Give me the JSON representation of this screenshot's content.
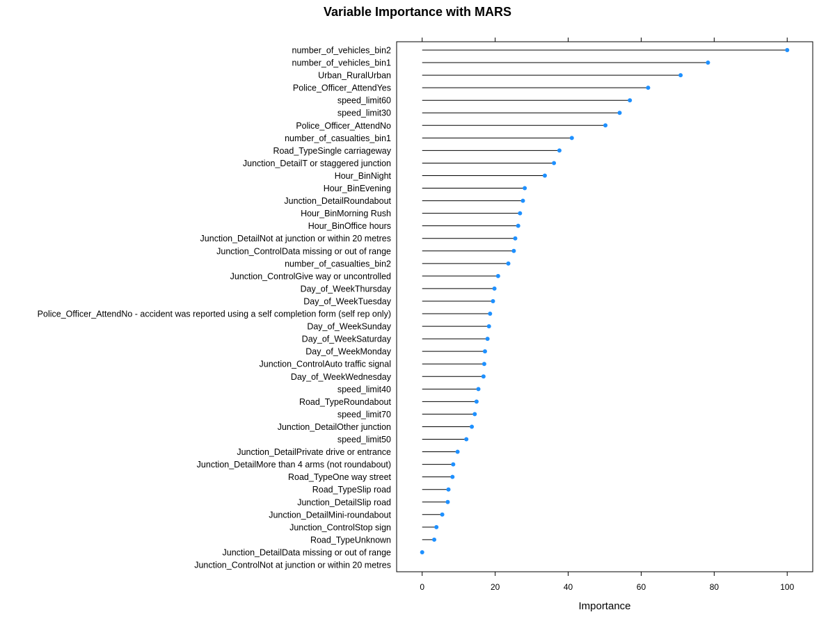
{
  "chart_data": {
    "type": "dotplot",
    "title": "Variable Importance with MARS",
    "xlabel": "Importance",
    "xlim": [
      -7,
      107
    ],
    "xticks": [
      0,
      20,
      40,
      60,
      80,
      100
    ],
    "xtick_labels": [
      "0",
      "20",
      "40",
      "60",
      "80",
      "100"
    ],
    "grid": false,
    "legend": "none",
    "colors": {
      "point": "#1e90ff",
      "line": "#000000",
      "frame": "#000000"
    },
    "categories": [
      "number_of_vehicles_bin2",
      "number_of_vehicles_bin1",
      "Urban_RuralUrban",
      "Police_Officer_AttendYes",
      "speed_limit60",
      "speed_limit30",
      "Police_Officer_AttendNo",
      "number_of_casualties_bin1",
      "Road_TypeSingle carriageway",
      "Junction_DetailT or staggered junction",
      "Hour_BinNight",
      "Hour_BinEvening",
      "Junction_DetailRoundabout",
      "Hour_BinMorning Rush",
      "Hour_BinOffice hours",
      "Junction_DetailNot at junction or within 20 metres",
      "Junction_ControlData missing or out of range",
      "number_of_casualties_bin2",
      "Junction_ControlGive way or uncontrolled",
      "Day_of_WeekThursday",
      "Day_of_WeekTuesday",
      "Police_Officer_AttendNo - accident was reported using a self completion  form (self rep only)",
      "Day_of_WeekSunday",
      "Day_of_WeekSaturday",
      "Day_of_WeekMonday",
      "Junction_ControlAuto traffic signal",
      "Day_of_WeekWednesday",
      "speed_limit40",
      "Road_TypeRoundabout",
      "speed_limit70",
      "Junction_DetailOther junction",
      "speed_limit50",
      "Junction_DetailPrivate drive or entrance",
      "Junction_DetailMore than 4 arms (not roundabout)",
      "Road_TypeOne way street",
      "Road_TypeSlip road",
      "Junction_DetailSlip road",
      "Junction_DetailMini-roundabout",
      "Junction_ControlStop sign",
      "Road_TypeUnknown",
      "Junction_DetailData missing or out of range",
      "Junction_ControlNot at junction or within 20 metres"
    ],
    "values": [
      100,
      78.3,
      70.8,
      61.9,
      56.9,
      54.1,
      50.2,
      41.0,
      37.6,
      36.1,
      33.6,
      28.1,
      27.6,
      26.8,
      26.3,
      25.5,
      25.1,
      23.6,
      20.8,
      19.8,
      19.4,
      18.6,
      18.3,
      17.9,
      17.2,
      17.0,
      16.8,
      15.4,
      14.9,
      14.4,
      13.6,
      12.1,
      9.7,
      8.5,
      8.3,
      7.2,
      7.0,
      5.5,
      3.9,
      3.3,
      0.0,
      null
    ]
  }
}
